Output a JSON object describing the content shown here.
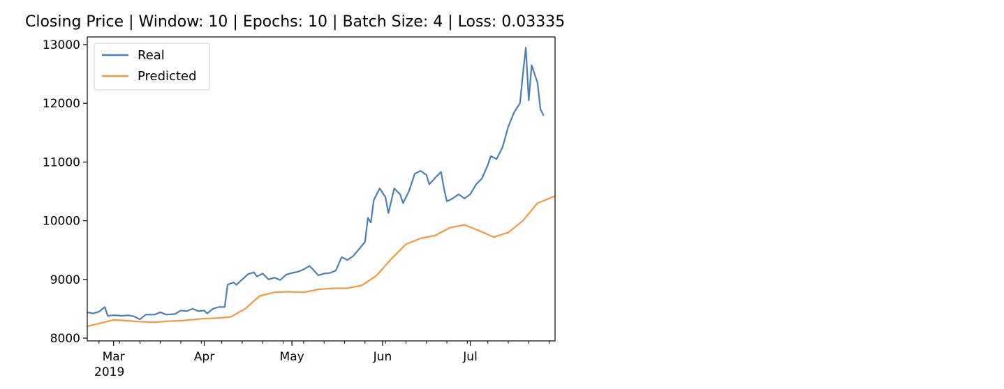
{
  "chart_data": {
    "type": "line",
    "title": "Closing Price | Window: 10 | Epochs: 10 | Batch Size: 4 | Loss: 0.03335",
    "xlabel": "",
    "ylabel": "",
    "xlim": [
      "2019-02-20",
      "2019-07-30"
    ],
    "ylim": [
      8000,
      13000
    ],
    "y_ticks": [
      8000,
      9000,
      10000,
      11000,
      12000,
      13000
    ],
    "x_ticks": [
      {
        "date": "2019-03-01",
        "label": "Mar",
        "sublabel": "2019"
      },
      {
        "date": "2019-04-01",
        "label": "Apr"
      },
      {
        "date": "2019-05-01",
        "label": "May"
      },
      {
        "date": "2019-06-01",
        "label": "Jun"
      },
      {
        "date": "2019-07-01",
        "label": "Jul"
      }
    ],
    "grid": false,
    "legend": "upper-left",
    "series": [
      {
        "name": "Real",
        "color": "#4a7fb5",
        "points": [
          [
            "2019-02-20",
            8440
          ],
          [
            "2019-02-22",
            8420
          ],
          [
            "2019-02-24",
            8450
          ],
          [
            "2019-02-26",
            8530
          ],
          [
            "2019-02-27",
            8380
          ],
          [
            "2019-03-01",
            8390
          ],
          [
            "2019-03-04",
            8380
          ],
          [
            "2019-03-06",
            8390
          ],
          [
            "2019-03-08",
            8370
          ],
          [
            "2019-03-10",
            8320
          ],
          [
            "2019-03-12",
            8400
          ],
          [
            "2019-03-15",
            8400
          ],
          [
            "2019-03-17",
            8440
          ],
          [
            "2019-03-19",
            8400
          ],
          [
            "2019-03-22",
            8410
          ],
          [
            "2019-03-24",
            8470
          ],
          [
            "2019-03-26",
            8460
          ],
          [
            "2019-03-28",
            8500
          ],
          [
            "2019-03-30",
            8460
          ],
          [
            "2019-04-01",
            8470
          ],
          [
            "2019-04-02",
            8420
          ],
          [
            "2019-04-04",
            8500
          ],
          [
            "2019-04-06",
            8530
          ],
          [
            "2019-04-08",
            8530
          ],
          [
            "2019-04-09",
            8910
          ],
          [
            "2019-04-11",
            8950
          ],
          [
            "2019-04-12",
            8910
          ],
          [
            "2019-04-14",
            9000
          ],
          [
            "2019-04-16",
            9090
          ],
          [
            "2019-04-18",
            9120
          ],
          [
            "2019-04-19",
            9050
          ],
          [
            "2019-04-21",
            9100
          ],
          [
            "2019-04-23",
            9000
          ],
          [
            "2019-04-25",
            9030
          ],
          [
            "2019-04-27",
            8990
          ],
          [
            "2019-04-29",
            9080
          ],
          [
            "2019-05-01",
            9110
          ],
          [
            "2019-05-03",
            9130
          ],
          [
            "2019-05-05",
            9170
          ],
          [
            "2019-05-07",
            9230
          ],
          [
            "2019-05-08",
            9180
          ],
          [
            "2019-05-10",
            9070
          ],
          [
            "2019-05-12",
            9100
          ],
          [
            "2019-05-14",
            9110
          ],
          [
            "2019-05-16",
            9150
          ],
          [
            "2019-05-18",
            9380
          ],
          [
            "2019-05-20",
            9330
          ],
          [
            "2019-05-22",
            9400
          ],
          [
            "2019-05-24",
            9520
          ],
          [
            "2019-05-26",
            9640
          ],
          [
            "2019-05-27",
            10050
          ],
          [
            "2019-05-28",
            9970
          ],
          [
            "2019-05-29",
            10350
          ],
          [
            "2019-05-31",
            10550
          ],
          [
            "2019-06-02",
            10400
          ],
          [
            "2019-06-03",
            10130
          ],
          [
            "2019-06-05",
            10550
          ],
          [
            "2019-06-07",
            10450
          ],
          [
            "2019-06-08",
            10300
          ],
          [
            "2019-06-10",
            10500
          ],
          [
            "2019-06-12",
            10800
          ],
          [
            "2019-06-14",
            10850
          ],
          [
            "2019-06-16",
            10780
          ],
          [
            "2019-06-17",
            10620
          ],
          [
            "2019-06-19",
            10730
          ],
          [
            "2019-06-21",
            10830
          ],
          [
            "2019-06-22",
            10550
          ],
          [
            "2019-06-23",
            10330
          ],
          [
            "2019-06-25",
            10380
          ],
          [
            "2019-06-27",
            10450
          ],
          [
            "2019-06-29",
            10380
          ],
          [
            "2019-07-01",
            10450
          ],
          [
            "2019-07-03",
            10620
          ],
          [
            "2019-07-05",
            10720
          ],
          [
            "2019-07-07",
            10950
          ],
          [
            "2019-07-08",
            11100
          ],
          [
            "2019-07-10",
            11050
          ],
          [
            "2019-07-12",
            11250
          ],
          [
            "2019-07-14",
            11600
          ],
          [
            "2019-07-16",
            11850
          ],
          [
            "2019-07-18",
            12000
          ],
          [
            "2019-07-19",
            12500
          ],
          [
            "2019-07-20",
            12950
          ],
          [
            "2019-07-21",
            12050
          ],
          [
            "2019-07-22",
            12650
          ],
          [
            "2019-07-24",
            12350
          ],
          [
            "2019-07-25",
            11900
          ],
          [
            "2019-07-26",
            11800
          ]
        ]
      },
      {
        "name": "Predicted",
        "color": "#f5973f",
        "points": [
          [
            "2019-02-20",
            8200
          ],
          [
            "2019-02-25",
            8260
          ],
          [
            "2019-03-01",
            8310
          ],
          [
            "2019-03-05",
            8300
          ],
          [
            "2019-03-10",
            8280
          ],
          [
            "2019-03-15",
            8270
          ],
          [
            "2019-03-20",
            8290
          ],
          [
            "2019-03-25",
            8300
          ],
          [
            "2019-03-31",
            8330
          ],
          [
            "2019-04-05",
            8340
          ],
          [
            "2019-04-10",
            8360
          ],
          [
            "2019-04-15",
            8500
          ],
          [
            "2019-04-20",
            8720
          ],
          [
            "2019-04-25",
            8780
          ],
          [
            "2019-04-30",
            8790
          ],
          [
            "2019-05-05",
            8780
          ],
          [
            "2019-05-10",
            8830
          ],
          [
            "2019-05-15",
            8850
          ],
          [
            "2019-05-20",
            8850
          ],
          [
            "2019-05-25",
            8900
          ],
          [
            "2019-05-30",
            9070
          ],
          [
            "2019-06-04",
            9350
          ],
          [
            "2019-06-09",
            9600
          ],
          [
            "2019-06-14",
            9700
          ],
          [
            "2019-06-19",
            9750
          ],
          [
            "2019-06-24",
            9880
          ],
          [
            "2019-06-29",
            9930
          ],
          [
            "2019-07-04",
            9830
          ],
          [
            "2019-07-09",
            9720
          ],
          [
            "2019-07-14",
            9800
          ],
          [
            "2019-07-19",
            10000
          ],
          [
            "2019-07-24",
            10300
          ],
          [
            "2019-07-30",
            10420
          ]
        ]
      }
    ]
  }
}
